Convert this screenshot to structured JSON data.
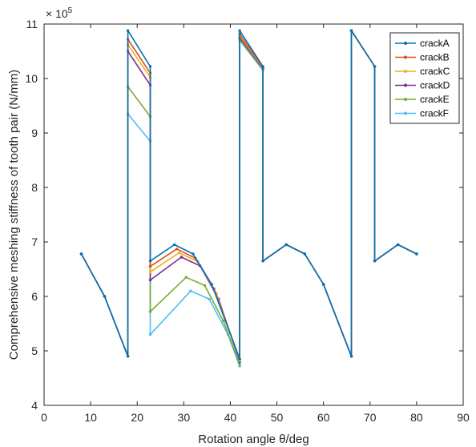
{
  "chart_data": {
    "type": "line",
    "xlabel": "Rotation angle θ/deg",
    "ylabel": "Comprehensive meshing stiffness of tooth pair (N/mm)",
    "exponent_label": "× 10^5",
    "exponent_base": "× 10",
    "exponent_power": "5",
    "xlim": [
      0,
      90
    ],
    "ylim": [
      4,
      11
    ],
    "xticks": [
      0,
      10,
      20,
      30,
      40,
      50,
      60,
      70,
      80,
      90
    ],
    "yticks": [
      4,
      5,
      6,
      7,
      8,
      9,
      10,
      11
    ],
    "legend_position": "top-right",
    "x_range": [
      8,
      80
    ],
    "series": [
      {
        "name": "crackA",
        "color": "#0072BD",
        "points": [
          [
            8,
            6.78
          ],
          [
            13,
            6.0
          ],
          [
            18,
            4.9
          ],
          [
            18,
            10.88
          ],
          [
            22.8,
            10.22
          ],
          [
            22.8,
            6.65
          ],
          [
            28,
            6.95
          ],
          [
            32,
            6.78
          ],
          [
            36,
            6.22
          ],
          [
            42,
            4.85
          ],
          [
            42,
            10.88
          ],
          [
            47,
            10.22
          ],
          [
            47,
            6.65
          ],
          [
            52,
            6.95
          ],
          [
            56,
            6.78
          ],
          [
            60,
            6.22
          ],
          [
            66,
            4.9
          ],
          [
            66,
            10.88
          ],
          [
            71,
            10.22
          ],
          [
            71,
            6.65
          ],
          [
            76,
            6.95
          ],
          [
            80,
            6.78
          ]
        ]
      },
      {
        "name": "crackB",
        "color": "#D95319",
        "points": [
          [
            8,
            6.78
          ],
          [
            13,
            6.0
          ],
          [
            18,
            4.9
          ],
          [
            18,
            10.72
          ],
          [
            22.8,
            10.1
          ],
          [
            22.8,
            6.55
          ],
          [
            28.5,
            6.87
          ],
          [
            32.5,
            6.7
          ],
          [
            36.5,
            6.14
          ],
          [
            42,
            4.85
          ],
          [
            42,
            10.82
          ],
          [
            47,
            10.2
          ],
          [
            47,
            6.65
          ],
          [
            52,
            6.95
          ],
          [
            56,
            6.78
          ],
          [
            60,
            6.22
          ],
          [
            66,
            4.9
          ],
          [
            66,
            10.88
          ],
          [
            71,
            10.22
          ],
          [
            71,
            6.65
          ],
          [
            76,
            6.95
          ],
          [
            80,
            6.78
          ]
        ]
      },
      {
        "name": "crackC",
        "color": "#EDB120",
        "points": [
          [
            8,
            6.78
          ],
          [
            13,
            6.0
          ],
          [
            18,
            4.9
          ],
          [
            18,
            10.62
          ],
          [
            22.8,
            10.02
          ],
          [
            22.8,
            6.45
          ],
          [
            29,
            6.8
          ],
          [
            33,
            6.64
          ],
          [
            37,
            6.05
          ],
          [
            42,
            4.82
          ],
          [
            42,
            10.79
          ],
          [
            47,
            10.19
          ],
          [
            47,
            6.65
          ],
          [
            52,
            6.95
          ],
          [
            56,
            6.78
          ],
          [
            60,
            6.22
          ],
          [
            66,
            4.9
          ],
          [
            66,
            10.88
          ],
          [
            71,
            10.22
          ],
          [
            71,
            6.65
          ],
          [
            76,
            6.95
          ],
          [
            80,
            6.78
          ]
        ]
      },
      {
        "name": "crackD",
        "color": "#7E2F8E",
        "points": [
          [
            8,
            6.78
          ],
          [
            13,
            6.0
          ],
          [
            18,
            4.9
          ],
          [
            18,
            10.5
          ],
          [
            22.8,
            9.88
          ],
          [
            22.8,
            6.3
          ],
          [
            29.5,
            6.72
          ],
          [
            33.5,
            6.56
          ],
          [
            37.5,
            5.95
          ],
          [
            42,
            4.8
          ],
          [
            42,
            10.75
          ],
          [
            47,
            10.18
          ],
          [
            47,
            6.65
          ],
          [
            52,
            6.95
          ],
          [
            56,
            6.78
          ],
          [
            60,
            6.22
          ],
          [
            66,
            4.9
          ],
          [
            66,
            10.88
          ],
          [
            71,
            10.22
          ],
          [
            71,
            6.65
          ],
          [
            76,
            6.95
          ],
          [
            80,
            6.78
          ]
        ]
      },
      {
        "name": "crackE",
        "color": "#77AC30",
        "points": [
          [
            8,
            6.78
          ],
          [
            13,
            6.0
          ],
          [
            18,
            4.9
          ],
          [
            18,
            9.85
          ],
          [
            22.8,
            9.3
          ],
          [
            22.8,
            5.72
          ],
          [
            30.5,
            6.35
          ],
          [
            34.5,
            6.2
          ],
          [
            38.5,
            5.55
          ],
          [
            42,
            4.75
          ],
          [
            42,
            10.73
          ],
          [
            47,
            10.17
          ],
          [
            47,
            6.65
          ],
          [
            52,
            6.95
          ],
          [
            56,
            6.78
          ],
          [
            60,
            6.22
          ],
          [
            66,
            4.9
          ],
          [
            66,
            10.88
          ],
          [
            71,
            10.22
          ],
          [
            71,
            6.65
          ],
          [
            76,
            6.95
          ],
          [
            80,
            6.78
          ]
        ]
      },
      {
        "name": "crackF",
        "color": "#4DBEEE",
        "points": [
          [
            8,
            6.78
          ],
          [
            13,
            6.0
          ],
          [
            18,
            4.9
          ],
          [
            18,
            9.35
          ],
          [
            22.8,
            8.85
          ],
          [
            22.8,
            5.3
          ],
          [
            31.5,
            6.1
          ],
          [
            35.5,
            5.95
          ],
          [
            39.5,
            5.3
          ],
          [
            42,
            4.72
          ],
          [
            42,
            10.7
          ],
          [
            47,
            10.15
          ],
          [
            47,
            6.65
          ],
          [
            52,
            6.95
          ],
          [
            56,
            6.78
          ],
          [
            60,
            6.22
          ],
          [
            66,
            4.9
          ],
          [
            66,
            10.88
          ],
          [
            71,
            10.22
          ],
          [
            71,
            6.65
          ],
          [
            76,
            6.95
          ],
          [
            80,
            6.78
          ]
        ]
      }
    ]
  }
}
